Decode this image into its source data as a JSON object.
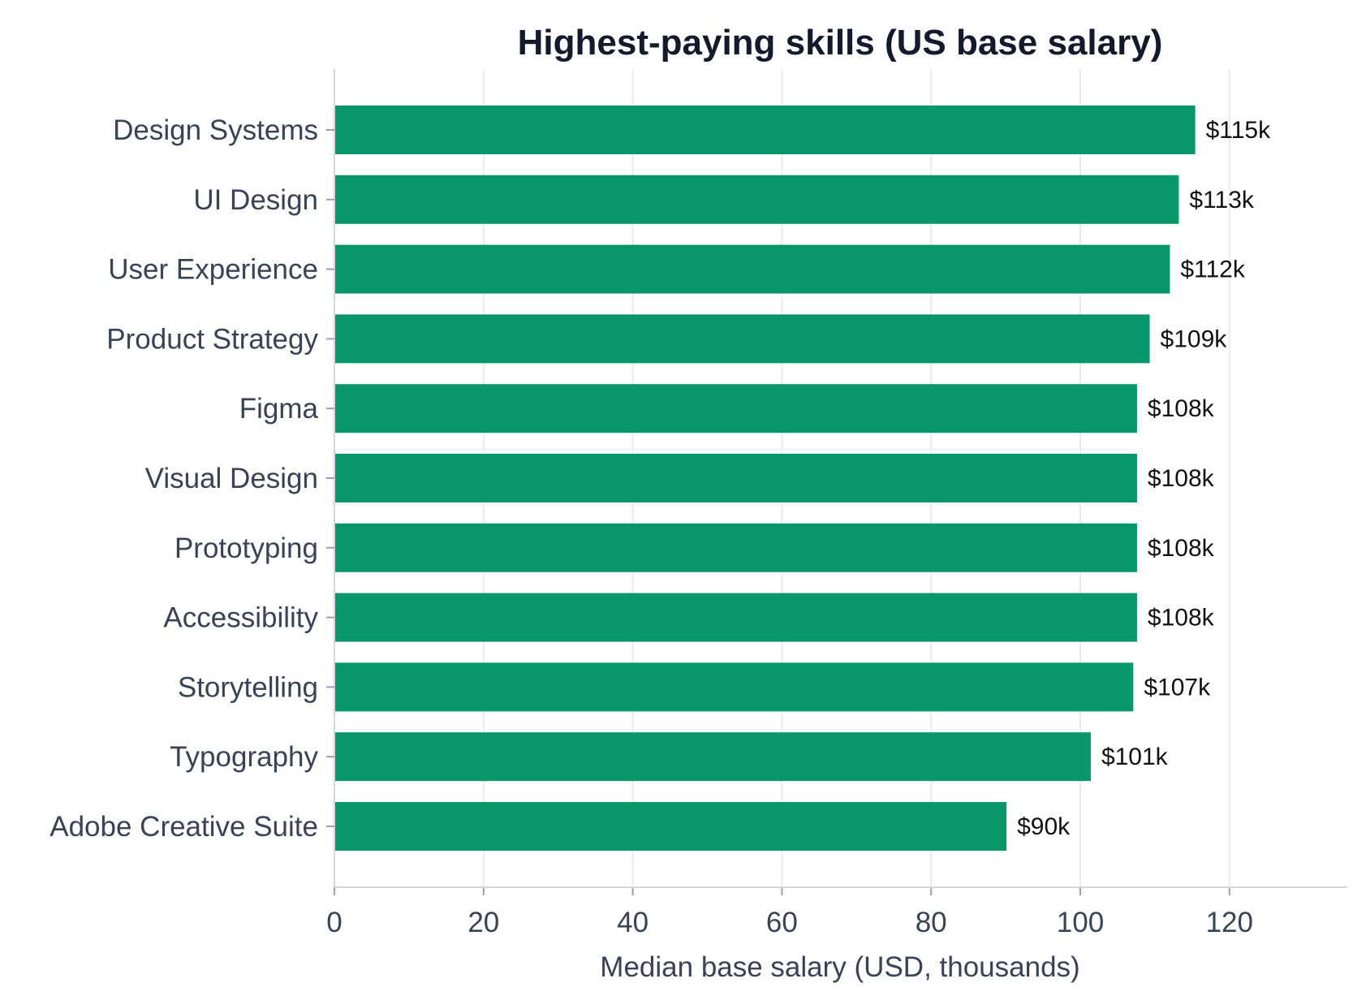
{
  "chart_data": {
    "type": "bar",
    "orientation": "horizontal",
    "title": "Highest-paying skills (US base salary)",
    "xlabel": "Median base salary (USD, thousands)",
    "ylabel": "",
    "xlim": [
      0,
      135
    ],
    "xticks": [
      0,
      20,
      40,
      60,
      80,
      100,
      120
    ],
    "x_tick_labels": [
      "0",
      "20",
      "40",
      "60",
      "80",
      "100",
      "120"
    ],
    "grid": "vertical",
    "legend": "none",
    "bar_color": "#07976b",
    "categories": [
      "Design Systems",
      "UI Design",
      "User Experience",
      "Product Strategy",
      "Figma",
      "Visual Design",
      "Prototyping",
      "Accessibility",
      "Storytelling",
      "Typography",
      "Adobe Creative Suite"
    ],
    "values": [
      115.3,
      113.1,
      111.9,
      109.2,
      107.5,
      107.5,
      107.5,
      107.5,
      107.0,
      101.3,
      90.0
    ],
    "data_labels": [
      "$115k",
      "$113k",
      "$112k",
      "$109k",
      "$108k",
      "$108k",
      "$108k",
      "$108k",
      "$107k",
      "$101k",
      "$90k"
    ]
  }
}
